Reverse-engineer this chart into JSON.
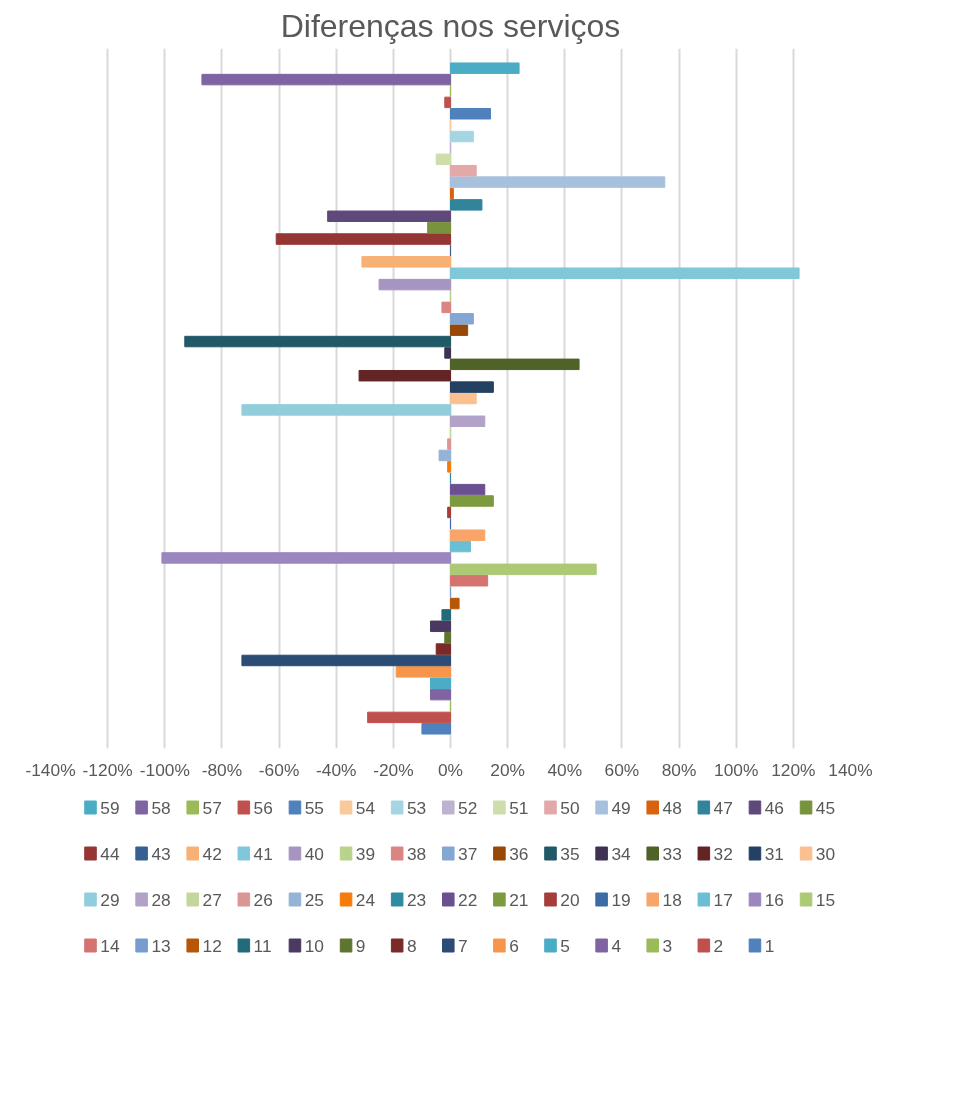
{
  "chart_data": {
    "type": "bar",
    "orientation": "horizontal",
    "title": "Diferenças nos serviços",
    "categories": [
      null
    ],
    "xlim": [
      -140,
      140
    ],
    "xticks": [
      {
        "value": -140,
        "label": "-140%"
      },
      {
        "value": -120,
        "label": "-120%"
      },
      {
        "value": -100,
        "label": "-100%"
      },
      {
        "value": -80,
        "label": "-80%"
      },
      {
        "value": -60,
        "label": "-60%"
      },
      {
        "value": -40,
        "label": "-40%"
      },
      {
        "value": -20,
        "label": "-20%"
      },
      {
        "value": 0,
        "label": "0%"
      },
      {
        "value": 20,
        "label": "20%"
      },
      {
        "value": 40,
        "label": "40%"
      },
      {
        "value": 60,
        "label": "60%"
      },
      {
        "value": 80,
        "label": "80%"
      },
      {
        "value": 100,
        "label": "100%"
      },
      {
        "value": 120,
        "label": "120%"
      },
      {
        "value": 140,
        "label": "140%"
      }
    ],
    "grid": "x",
    "legend": "bottom",
    "tick_labels": "x",
    "series": [
      {
        "name": "1",
        "color": "#4f81bd",
        "values": [
          -10
        ]
      },
      {
        "name": "2",
        "color": "#c0504d",
        "values": [
          -29
        ]
      },
      {
        "name": "3",
        "color": "#9bbb59",
        "values": [
          0
        ]
      },
      {
        "name": "4",
        "color": "#8064a2",
        "values": [
          -7
        ]
      },
      {
        "name": "5",
        "color": "#4bacc6",
        "values": [
          -7
        ]
      },
      {
        "name": "6",
        "color": "#f7964a",
        "values": [
          -19
        ]
      },
      {
        "name": "7",
        "color": "#2b4c74",
        "values": [
          -73
        ]
      },
      {
        "name": "8",
        "color": "#7a2b29",
        "values": [
          -5
        ]
      },
      {
        "name": "9",
        "color": "#5e752f",
        "values": [
          -2
        ]
      },
      {
        "name": "10",
        "color": "#4a3a62",
        "values": [
          -7
        ]
      },
      {
        "name": "11",
        "color": "#236a7a",
        "values": [
          -3
        ]
      },
      {
        "name": "12",
        "color": "#b65708",
        "values": [
          3
        ]
      },
      {
        "name": "13",
        "color": "#779ccf",
        "values": [
          0
        ]
      },
      {
        "name": "14",
        "color": "#d47370",
        "values": [
          13
        ]
      },
      {
        "name": "15",
        "color": "#acca76",
        "values": [
          51
        ]
      },
      {
        "name": "16",
        "color": "#9b86bf",
        "values": [
          -101
        ]
      },
      {
        "name": "17",
        "color": "#6bbfd4",
        "values": [
          7
        ]
      },
      {
        "name": "18",
        "color": "#f9a56a",
        "values": [
          12
        ]
      },
      {
        "name": "19",
        "color": "#3c6ba5",
        "values": [
          0
        ]
      },
      {
        "name": "20",
        "color": "#a53d3a",
        "values": [
          -1
        ]
      },
      {
        "name": "21",
        "color": "#7d9b3e",
        "values": [
          15
        ]
      },
      {
        "name": "22",
        "color": "#6a5090",
        "values": [
          12
        ]
      },
      {
        "name": "23",
        "color": "#2e8ba1",
        "values": [
          0
        ]
      },
      {
        "name": "24",
        "color": "#f57c0a",
        "values": [
          -1
        ]
      },
      {
        "name": "25",
        "color": "#95b3d7",
        "values": [
          -4
        ]
      },
      {
        "name": "26",
        "color": "#da9694",
        "values": [
          -1
        ]
      },
      {
        "name": "27",
        "color": "#c3d69b",
        "values": [
          0
        ]
      },
      {
        "name": "28",
        "color": "#b2a2c7",
        "values": [
          12
        ]
      },
      {
        "name": "29",
        "color": "#92cddc",
        "values": [
          -73
        ]
      },
      {
        "name": "30",
        "color": "#fac08f",
        "values": [
          9
        ]
      },
      {
        "name": "31",
        "color": "#244062",
        "values": [
          15
        ]
      },
      {
        "name": "32",
        "color": "#632523",
        "values": [
          -32
        ]
      },
      {
        "name": "33",
        "color": "#4f6228",
        "values": [
          45
        ]
      },
      {
        "name": "34",
        "color": "#3f3151",
        "values": [
          -2
        ]
      },
      {
        "name": "35",
        "color": "#215967",
        "values": [
          -93
        ]
      },
      {
        "name": "36",
        "color": "#984807",
        "values": [
          6
        ]
      },
      {
        "name": "37",
        "color": "#84a6d3",
        "values": [
          8
        ]
      },
      {
        "name": "38",
        "color": "#d98583",
        "values": [
          -3
        ]
      },
      {
        "name": "39",
        "color": "#b8d38c",
        "values": [
          0
        ]
      },
      {
        "name": "40",
        "color": "#a694c1",
        "values": [
          -25
        ]
      },
      {
        "name": "41",
        "color": "#7fc7d9",
        "values": [
          122
        ]
      },
      {
        "name": "42",
        "color": "#f9b074",
        "values": [
          -31
        ]
      },
      {
        "name": "43",
        "color": "#366092",
        "values": [
          0
        ]
      },
      {
        "name": "44",
        "color": "#943634",
        "values": [
          -61
        ]
      },
      {
        "name": "45",
        "color": "#77933c",
        "values": [
          -8
        ]
      },
      {
        "name": "46",
        "color": "#5f497a",
        "values": [
          -43
        ]
      },
      {
        "name": "47",
        "color": "#31849b",
        "values": [
          11
        ]
      },
      {
        "name": "48",
        "color": "#d9620f",
        "values": [
          1
        ]
      },
      {
        "name": "49",
        "color": "#a7c0de",
        "values": [
          75
        ]
      },
      {
        "name": "50",
        "color": "#e3a9a8",
        "values": [
          9
        ]
      },
      {
        "name": "51",
        "color": "#cddeab",
        "values": [
          -5
        ]
      },
      {
        "name": "52",
        "color": "#bfb1d0",
        "values": [
          0
        ]
      },
      {
        "name": "53",
        "color": "#a5d5e2",
        "values": [
          8
        ]
      },
      {
        "name": "54",
        "color": "#f9c89b",
        "values": [
          0
        ]
      },
      {
        "name": "55",
        "color": "#4f81bd",
        "values": [
          14
        ]
      },
      {
        "name": "56",
        "color": "#c0504d",
        "values": [
          -2
        ]
      },
      {
        "name": "57",
        "color": "#9bbb59",
        "values": [
          0
        ]
      },
      {
        "name": "58",
        "color": "#8064a2",
        "values": [
          -87
        ]
      },
      {
        "name": "59",
        "color": "#4bacc6",
        "values": [
          24
        ]
      }
    ]
  }
}
